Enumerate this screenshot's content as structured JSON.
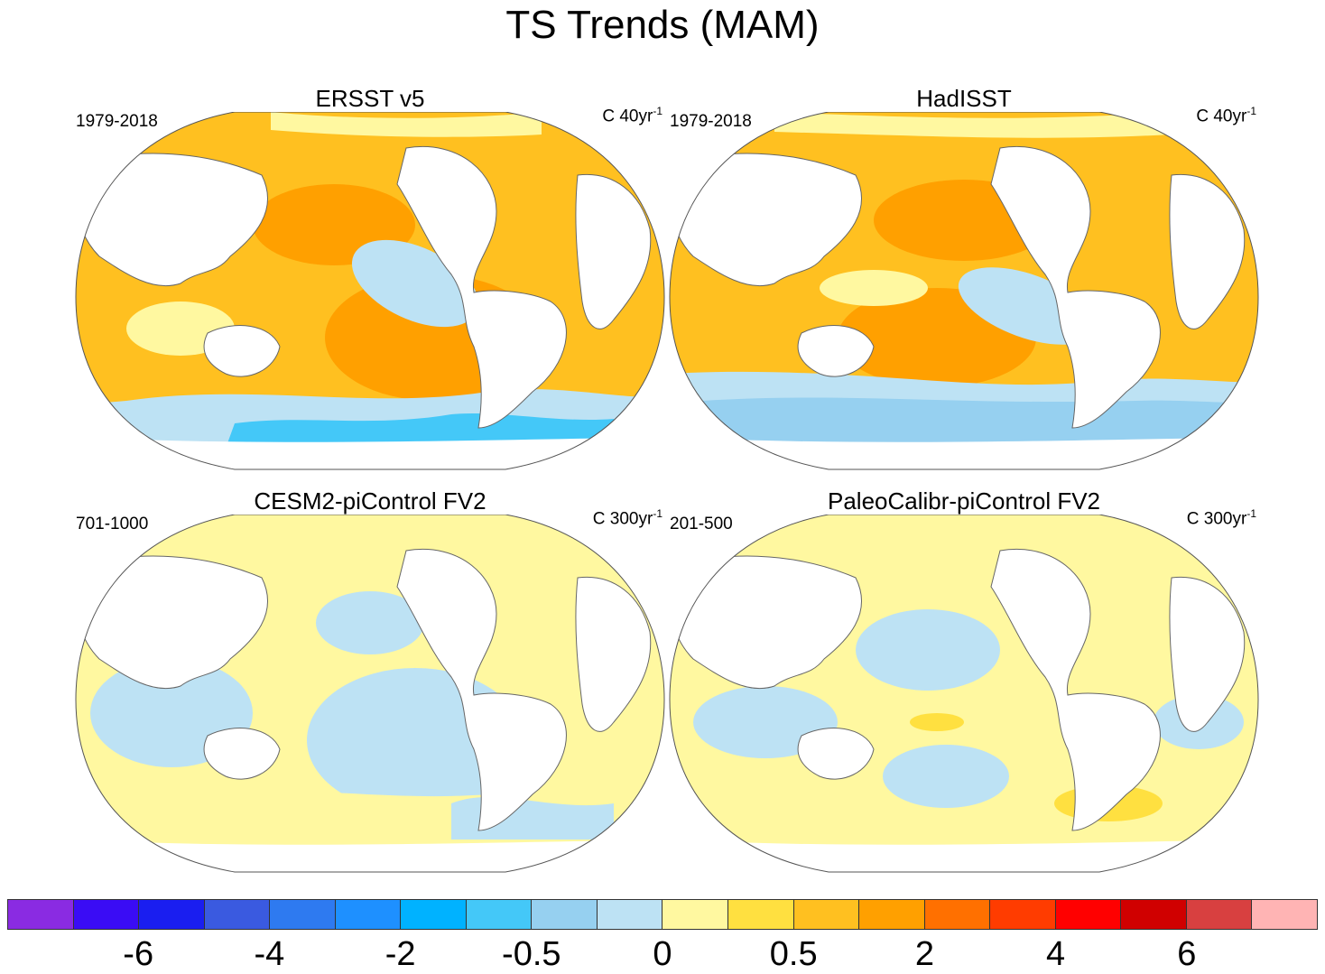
{
  "title": "TS Trends (MAM)",
  "panels": [
    {
      "title": "ERSST v5",
      "period": "1979-2018",
      "units_prefix": "C 40yr",
      "units_exp": "-1"
    },
    {
      "title": "HadISST",
      "period": "1979-2018",
      "units_prefix": "C 40yr",
      "units_exp": "-1"
    },
    {
      "title": "CESM2-piControl FV2",
      "period": "701-1000",
      "units_prefix": "C 300yr",
      "units_exp": "-1"
    },
    {
      "title": "PaleoCalibr-piControl FV2",
      "period": "201-500",
      "units_prefix": "C 300yr",
      "units_exp": "-1"
    }
  ],
  "colorbar": {
    "colors": [
      "#8a2be2",
      "#3a0cf5",
      "#1a1ef0",
      "#3a5ae0",
      "#2e7af0",
      "#1e90ff",
      "#00b2ff",
      "#44c8f8",
      "#96d0f0",
      "#bde2f4",
      "#fff8a0",
      "#ffe040",
      "#ffc020",
      "#ffa000",
      "#ff7000",
      "#ff3c00",
      "#ff0000",
      "#d00000",
      "#d84040",
      "#ffb4b4"
    ],
    "labels": [
      "-6",
      "-4",
      "-2",
      "-0.5",
      "0",
      "0.5",
      "2",
      "4",
      "6"
    ]
  },
  "colors": {
    "land": "#ffffff",
    "coast": "#666666"
  }
}
